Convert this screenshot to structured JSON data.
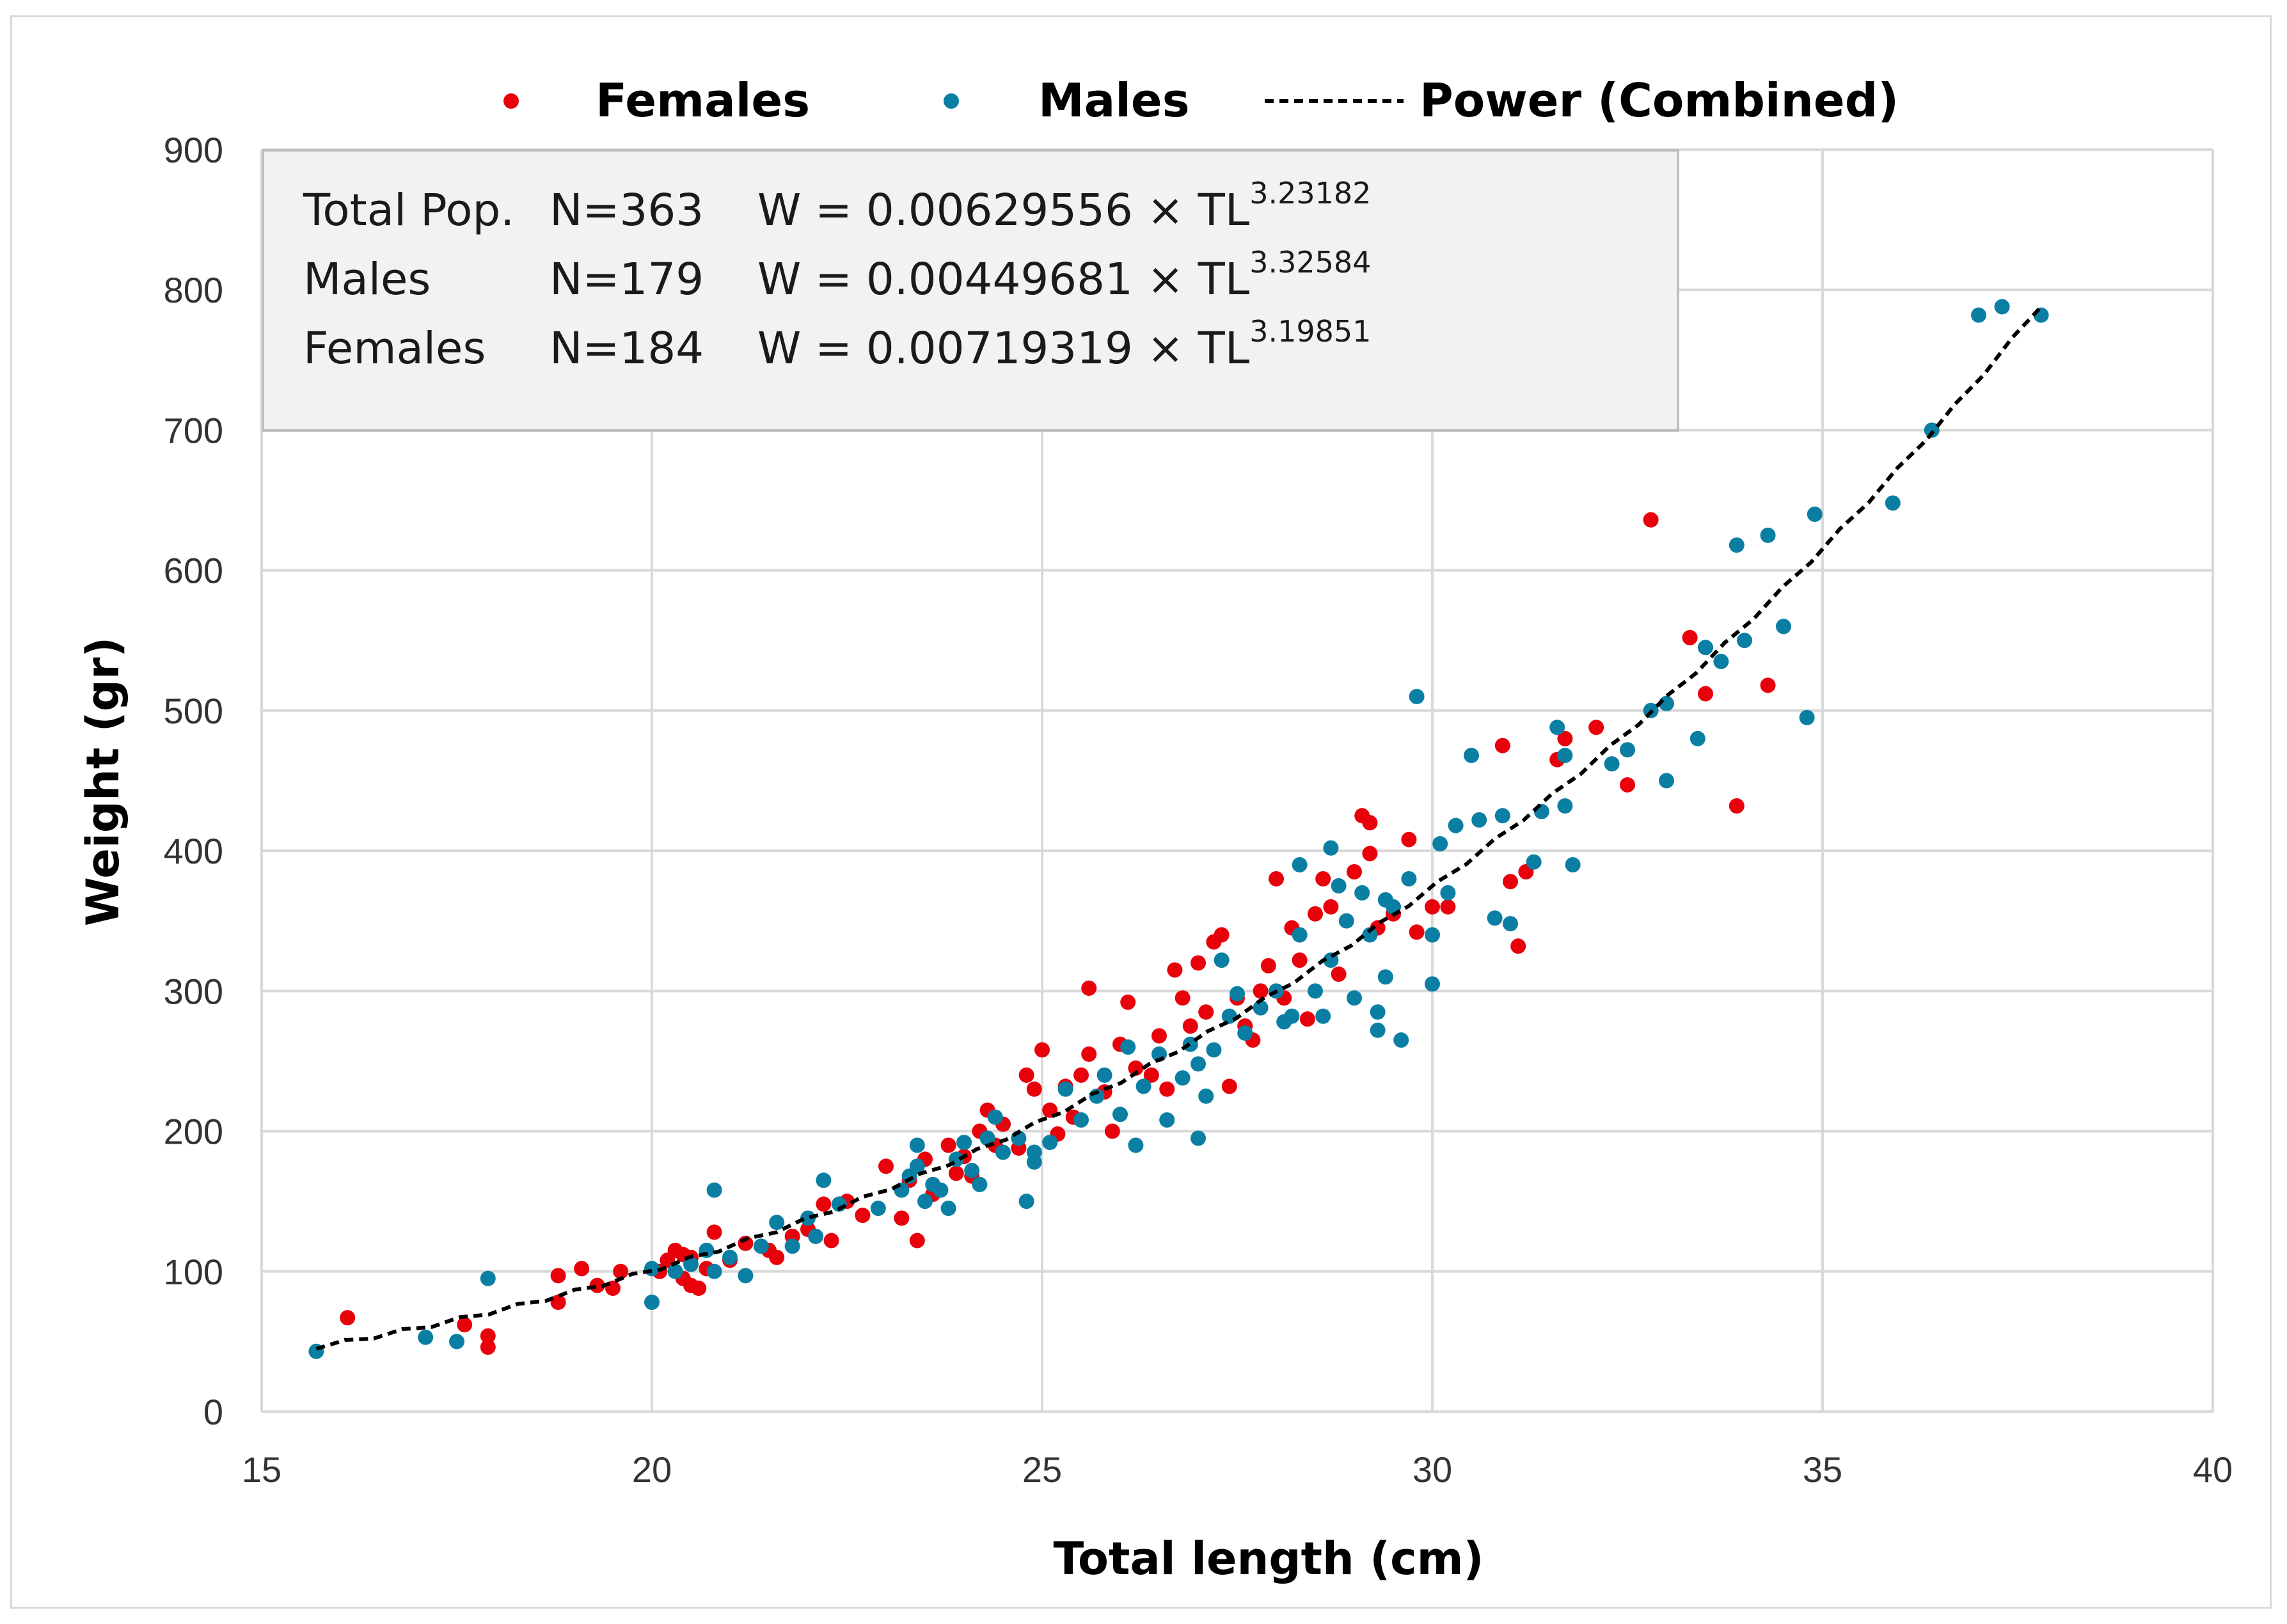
{
  "colors": {
    "females": "#e8000b",
    "males": "#0a7fa3",
    "fit": "#000000",
    "grid": "#d9d9d9",
    "info_box_bg": "#f2f2f2",
    "info_box_border": "#bfbfbf"
  },
  "legend": [
    {
      "label": "Females",
      "marker": "dot",
      "color": "#e8000b"
    },
    {
      "label": "Males",
      "marker": "dot",
      "color": "#0a7fa3"
    },
    {
      "label": "Power (Combined)",
      "marker": "dashed-line",
      "color": "#000000"
    }
  ],
  "info_box": {
    "rows": [
      {
        "group": "Total Pop.",
        "n": "N=363",
        "formula": "W = 0.00629556 × TL",
        "exponent": "3.23182"
      },
      {
        "group": "Males",
        "n": "N=179",
        "formula": "W = 0.00449681 × TL",
        "exponent": "3.32584"
      },
      {
        "group": "Females",
        "n": "N=184",
        "formula": "W = 0.00719319 × TL",
        "exponent": "3.19851"
      }
    ]
  },
  "chart_data": {
    "type": "scatter",
    "title": "",
    "xlabel": "Total length (cm)",
    "ylabel": "Weight (gr)",
    "xlim": [
      15,
      40
    ],
    "ylim": [
      0,
      900
    ],
    "xticks": [
      15,
      20,
      25,
      30,
      35,
      40
    ],
    "yticks": [
      0,
      100,
      200,
      300,
      400,
      500,
      600,
      700,
      800,
      900
    ],
    "grid": true,
    "legend_position": "top",
    "series": [
      {
        "name": "Females",
        "points": [
          [
            16.1,
            67
          ],
          [
            17.6,
            62
          ],
          [
            17.9,
            54
          ],
          [
            17.9,
            46
          ],
          [
            18.8,
            78
          ],
          [
            18.8,
            97
          ],
          [
            19.1,
            102
          ],
          [
            19.3,
            90
          ],
          [
            19.5,
            88
          ],
          [
            19.6,
            100
          ],
          [
            20.1,
            100
          ],
          [
            20.2,
            108
          ],
          [
            20.3,
            115
          ],
          [
            20.4,
            95
          ],
          [
            20.4,
            112
          ],
          [
            20.5,
            90
          ],
          [
            20.5,
            110
          ],
          [
            20.6,
            88
          ],
          [
            20.7,
            102
          ],
          [
            20.8,
            128
          ],
          [
            21.0,
            108
          ],
          [
            21.2,
            120
          ],
          [
            21.5,
            115
          ],
          [
            21.6,
            110
          ],
          [
            21.8,
            125
          ],
          [
            22.0,
            130
          ],
          [
            22.2,
            148
          ],
          [
            22.3,
            122
          ],
          [
            22.5,
            150
          ],
          [
            22.7,
            140
          ],
          [
            23.0,
            175
          ],
          [
            23.2,
            138
          ],
          [
            23.3,
            165
          ],
          [
            23.4,
            122
          ],
          [
            23.5,
            180
          ],
          [
            23.6,
            155
          ],
          [
            23.8,
            190
          ],
          [
            23.9,
            170
          ],
          [
            24.0,
            182
          ],
          [
            24.1,
            168
          ],
          [
            24.2,
            200
          ],
          [
            24.3,
            215
          ],
          [
            24.4,
            190
          ],
          [
            24.5,
            205
          ],
          [
            24.7,
            188
          ],
          [
            24.8,
            240
          ],
          [
            24.9,
            230
          ],
          [
            25.0,
            258
          ],
          [
            25.1,
            215
          ],
          [
            25.2,
            198
          ],
          [
            25.3,
            232
          ],
          [
            25.4,
            210
          ],
          [
            25.5,
            240
          ],
          [
            25.6,
            255
          ],
          [
            25.6,
            302
          ],
          [
            25.8,
            228
          ],
          [
            25.9,
            200
          ],
          [
            26.0,
            262
          ],
          [
            26.1,
            292
          ],
          [
            26.2,
            245
          ],
          [
            26.4,
            240
          ],
          [
            26.5,
            268
          ],
          [
            26.6,
            230
          ],
          [
            26.7,
            315
          ],
          [
            26.8,
            295
          ],
          [
            26.9,
            275
          ],
          [
            27.0,
            320
          ],
          [
            27.1,
            285
          ],
          [
            27.2,
            335
          ],
          [
            27.3,
            340
          ],
          [
            27.4,
            232
          ],
          [
            27.5,
            295
          ],
          [
            27.6,
            275
          ],
          [
            27.7,
            265
          ],
          [
            27.8,
            300
          ],
          [
            27.9,
            318
          ],
          [
            28.0,
            380
          ],
          [
            28.1,
            295
          ],
          [
            28.2,
            345
          ],
          [
            28.3,
            322
          ],
          [
            28.4,
            280
          ],
          [
            28.5,
            355
          ],
          [
            28.6,
            380
          ],
          [
            28.7,
            360
          ],
          [
            28.8,
            312
          ],
          [
            29.0,
            385
          ],
          [
            29.1,
            425
          ],
          [
            29.2,
            420
          ],
          [
            29.2,
            398
          ],
          [
            29.3,
            345
          ],
          [
            29.5,
            355
          ],
          [
            29.7,
            408
          ],
          [
            29.8,
            342
          ],
          [
            30.0,
            360
          ],
          [
            30.2,
            360
          ],
          [
            30.9,
            475
          ],
          [
            31.0,
            378
          ],
          [
            31.1,
            332
          ],
          [
            31.2,
            385
          ],
          [
            31.6,
            465
          ],
          [
            31.7,
            480
          ],
          [
            32.1,
            488
          ],
          [
            32.5,
            447
          ],
          [
            32.8,
            636
          ],
          [
            33.3,
            552
          ],
          [
            33.5,
            512
          ],
          [
            33.9,
            432
          ],
          [
            34.3,
            518
          ]
        ]
      },
      {
        "name": "Males",
        "points": [
          [
            15.7,
            43
          ],
          [
            17.1,
            53
          ],
          [
            17.5,
            50
          ],
          [
            17.9,
            95
          ],
          [
            20.0,
            78
          ],
          [
            20.0,
            102
          ],
          [
            20.3,
            100
          ],
          [
            20.5,
            105
          ],
          [
            20.7,
            115
          ],
          [
            20.8,
            100
          ],
          [
            20.8,
            158
          ],
          [
            21.0,
            110
          ],
          [
            21.2,
            97
          ],
          [
            21.4,
            118
          ],
          [
            21.6,
            135
          ],
          [
            21.8,
            118
          ],
          [
            22.0,
            138
          ],
          [
            22.1,
            125
          ],
          [
            22.2,
            165
          ],
          [
            22.4,
            148
          ],
          [
            22.9,
            145
          ],
          [
            23.2,
            158
          ],
          [
            23.3,
            168
          ],
          [
            23.4,
            175
          ],
          [
            23.4,
            190
          ],
          [
            23.5,
            150
          ],
          [
            23.6,
            162
          ],
          [
            23.7,
            158
          ],
          [
            23.8,
            145
          ],
          [
            23.9,
            180
          ],
          [
            24.0,
            192
          ],
          [
            24.1,
            172
          ],
          [
            24.2,
            162
          ],
          [
            24.3,
            195
          ],
          [
            24.4,
            210
          ],
          [
            24.5,
            185
          ],
          [
            24.7,
            195
          ],
          [
            24.8,
            150
          ],
          [
            24.9,
            185
          ],
          [
            24.9,
            178
          ],
          [
            25.1,
            192
          ],
          [
            25.3,
            230
          ],
          [
            25.5,
            208
          ],
          [
            25.7,
            225
          ],
          [
            25.8,
            240
          ],
          [
            26.0,
            212
          ],
          [
            26.1,
            260
          ],
          [
            26.2,
            190
          ],
          [
            26.3,
            232
          ],
          [
            26.5,
            255
          ],
          [
            26.6,
            208
          ],
          [
            26.8,
            238
          ],
          [
            26.9,
            262
          ],
          [
            27.0,
            248
          ],
          [
            27.0,
            195
          ],
          [
            27.1,
            225
          ],
          [
            27.2,
            258
          ],
          [
            27.3,
            322
          ],
          [
            27.4,
            282
          ],
          [
            27.5,
            298
          ],
          [
            27.6,
            270
          ],
          [
            27.8,
            288
          ],
          [
            28.0,
            300
          ],
          [
            28.1,
            278
          ],
          [
            28.2,
            282
          ],
          [
            28.3,
            340
          ],
          [
            28.3,
            390
          ],
          [
            28.5,
            300
          ],
          [
            28.6,
            282
          ],
          [
            28.7,
            322
          ],
          [
            28.7,
            402
          ],
          [
            28.8,
            375
          ],
          [
            28.9,
            350
          ],
          [
            29.0,
            295
          ],
          [
            29.1,
            370
          ],
          [
            29.2,
            340
          ],
          [
            29.3,
            285
          ],
          [
            29.3,
            272
          ],
          [
            29.4,
            365
          ],
          [
            29.4,
            310
          ],
          [
            29.5,
            360
          ],
          [
            29.6,
            265
          ],
          [
            29.7,
            380
          ],
          [
            29.8,
            510
          ],
          [
            30.0,
            305
          ],
          [
            30.0,
            340
          ],
          [
            30.1,
            405
          ],
          [
            30.2,
            370
          ],
          [
            30.3,
            418
          ],
          [
            30.5,
            468
          ],
          [
            30.6,
            422
          ],
          [
            30.8,
            352
          ],
          [
            30.9,
            425
          ],
          [
            31.0,
            348
          ],
          [
            31.3,
            392
          ],
          [
            31.4,
            428
          ],
          [
            31.6,
            488
          ],
          [
            31.7,
            468
          ],
          [
            31.7,
            432
          ],
          [
            31.8,
            390
          ],
          [
            32.3,
            462
          ],
          [
            32.5,
            472
          ],
          [
            32.8,
            500
          ],
          [
            33.0,
            505
          ],
          [
            33.0,
            450
          ],
          [
            33.4,
            480
          ],
          [
            33.5,
            545
          ],
          [
            33.7,
            535
          ],
          [
            33.9,
            618
          ],
          [
            34.0,
            550
          ],
          [
            34.3,
            625
          ],
          [
            34.5,
            560
          ],
          [
            34.8,
            495
          ],
          [
            34.9,
            640
          ],
          [
            35.9,
            648
          ],
          [
            36.4,
            700
          ],
          [
            37.0,
            782
          ],
          [
            37.3,
            788
          ],
          [
            37.8,
            782
          ]
        ]
      },
      {
        "name": "Power (Combined)",
        "style": "dashed",
        "function": "W = 0.00629556 × TL^3.23182",
        "x_range": [
          15.7,
          37.8
        ]
      }
    ]
  }
}
